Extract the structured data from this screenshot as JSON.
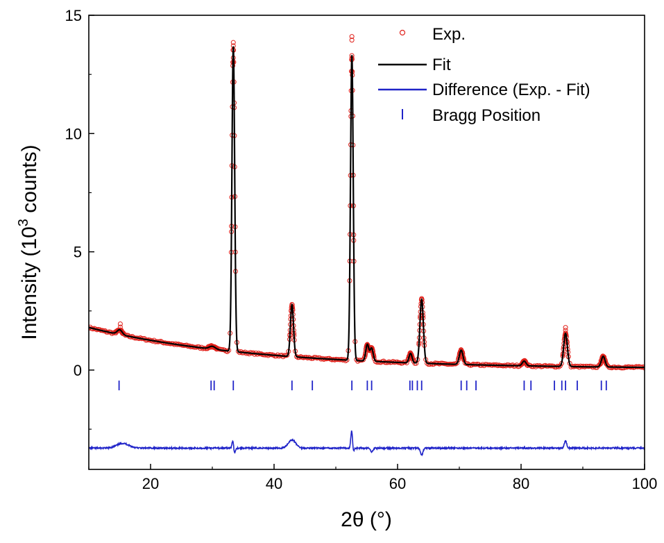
{
  "chart_data": {
    "type": "line",
    "xlabel": "2θ (°)",
    "ylabel_main": "Intensity (10",
    "ylabel_sup": "3",
    "ylabel_tail": " counts)",
    "xlim": [
      10,
      100
    ],
    "ylim": [
      -4.2,
      15
    ],
    "xticks": [
      20,
      40,
      60,
      80,
      100
    ],
    "yticks": [
      0,
      5,
      10,
      15
    ],
    "grid": false,
    "legend_position": "top-right",
    "legend": [
      {
        "label": "Exp.",
        "marker": "open-circle",
        "color": "#e0201a"
      },
      {
        "label": "Fit",
        "marker": "line",
        "color": "#000000"
      },
      {
        "label": "Difference (Exp. - Fit)",
        "marker": "line",
        "color": "#1f23c8"
      },
      {
        "label": "Bragg Position",
        "marker": "tick",
        "color": "#1f23c8"
      }
    ],
    "background": {
      "start": 1.8,
      "decay": 27,
      "floor": 0.05
    },
    "peaks": [
      {
        "x": 15.0,
        "height": 0.2,
        "width": 0.4
      },
      {
        "x": 30.0,
        "height": 0.12,
        "width": 0.5
      },
      {
        "x": 33.4,
        "height": 12.9,
        "width": 0.22
      },
      {
        "x": 42.9,
        "height": 2.2,
        "width": 0.25
      },
      {
        "x": 52.6,
        "height": 12.9,
        "width": 0.22
      },
      {
        "x": 55.1,
        "height": 0.7,
        "width": 0.25
      },
      {
        "x": 55.8,
        "height": 0.55,
        "width": 0.25
      },
      {
        "x": 62.1,
        "height": 0.4,
        "width": 0.25
      },
      {
        "x": 63.9,
        "height": 2.7,
        "width": 0.28
      },
      {
        "x": 70.3,
        "height": 0.6,
        "width": 0.3
      },
      {
        "x": 80.5,
        "height": 0.2,
        "width": 0.3
      },
      {
        "x": 87.2,
        "height": 1.4,
        "width": 0.3
      },
      {
        "x": 93.3,
        "height": 0.45,
        "width": 0.3
      }
    ],
    "exp_outliers": [
      {
        "x": 15.1,
        "y": 1.95
      },
      {
        "x": 15.1,
        "y": 1.82
      },
      {
        "x": 33.4,
        "y": 13.85
      },
      {
        "x": 33.4,
        "y": 13.2
      },
      {
        "x": 52.6,
        "y": 14.1
      },
      {
        "x": 52.6,
        "y": 13.95
      },
      {
        "x": 52.6,
        "y": 13.2
      },
      {
        "x": 87.2,
        "y": 1.8
      },
      {
        "x": 87.2,
        "y": 1.68
      }
    ],
    "bragg_positions": [
      14.9,
      29.8,
      30.3,
      33.4,
      42.9,
      46.2,
      52.6,
      55.1,
      55.8,
      62.0,
      62.4,
      63.2,
      63.9,
      70.3,
      71.2,
      72.7,
      80.5,
      81.6,
      85.4,
      86.6,
      87.2,
      89.1,
      93.0,
      93.8
    ],
    "bragg_y": -0.65,
    "difference_baseline": -3.3,
    "difference_features": [
      {
        "x": 15.5,
        "amp": 0.2,
        "width": 1.0
      },
      {
        "x": 33.4,
        "amp": 0.7,
        "width": 0.15
      },
      {
        "x": 33.5,
        "amp": -0.6,
        "width": 0.15
      },
      {
        "x": 42.9,
        "amp": 0.35,
        "width": 0.6
      },
      {
        "x": 52.6,
        "amp": 0.95,
        "width": 0.15
      },
      {
        "x": 52.75,
        "amp": -0.4,
        "width": 0.15
      },
      {
        "x": 55.8,
        "amp": -0.15,
        "width": 0.2
      },
      {
        "x": 63.9,
        "amp": -0.3,
        "width": 0.2
      },
      {
        "x": 87.2,
        "amp": 0.3,
        "width": 0.2
      }
    ]
  }
}
